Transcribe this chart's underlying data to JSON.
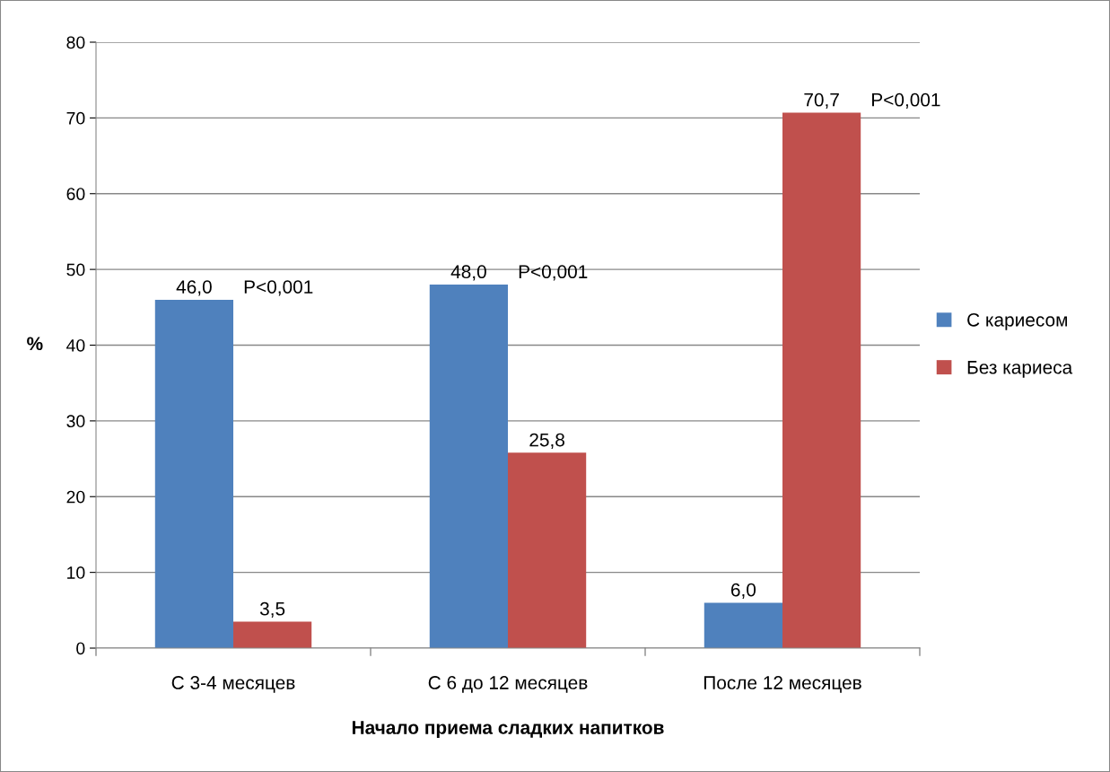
{
  "chart_data": {
    "type": "bar",
    "xlabel": "Начало приема сладких напитков",
    "ylabel": "%",
    "categories": [
      "С 3-4 месяцев",
      "С 6 до 12 месяцев",
      "После 12 месяцев"
    ],
    "series": [
      {
        "name": "С кариесом",
        "color": "#4f81bd",
        "values": [
          46.0,
          48.0,
          6.0
        ],
        "value_labels": [
          "46,0",
          "48,0",
          "6,0"
        ]
      },
      {
        "name": "Без кариеса",
        "color": "#c0504d",
        "values": [
          3.5,
          25.8,
          70.7
        ],
        "value_labels": [
          "3,5",
          "25,8",
          "70,7"
        ]
      }
    ],
    "ylim": [
      0,
      80
    ],
    "yticks": [
      0,
      10,
      20,
      30,
      40,
      50,
      60,
      70,
      80
    ],
    "grid": "y",
    "legend": "right",
    "annotations": [
      "P<0,001",
      "P<0,001",
      "P<0,001"
    ]
  }
}
